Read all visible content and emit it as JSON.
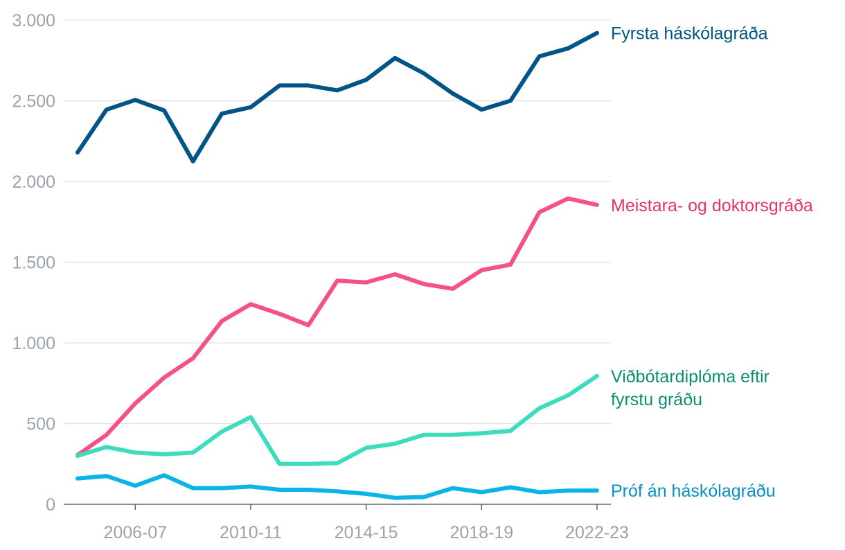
{
  "chart_data": {
    "type": "line",
    "x": [
      "2004-05",
      "2005-06",
      "2006-07",
      "2007-08",
      "2008-09",
      "2009-10",
      "2010-11",
      "2011-12",
      "2012-13",
      "2013-14",
      "2014-15",
      "2015-16",
      "2016-17",
      "2017-18",
      "2018-19",
      "2019-20",
      "2020-21",
      "2021-22",
      "2022-23"
    ],
    "x_tick_labels": [
      "2006-07",
      "2010-11",
      "2014-15",
      "2018-19",
      "2022-23"
    ],
    "y_tick_labels": [
      "0",
      "500",
      "1.000",
      "1.500",
      "2.000",
      "2.500",
      "3.000"
    ],
    "y_ticks": [
      0,
      500,
      1000,
      1500,
      2000,
      2500,
      3000
    ],
    "ylim": [
      0,
      3000
    ],
    "title": "",
    "xlabel": "",
    "ylabel": "",
    "grid": true,
    "legend": "direct-labels-right",
    "series": [
      {
        "name": "Fyrsta háskólagráða",
        "label_lines": [
          "Fyrsta háskólagráða"
        ],
        "color": "#005486",
        "label_color": "#005486",
        "values": [
          2180,
          2445,
          2505,
          2440,
          2125,
          2420,
          2460,
          2595,
          2595,
          2565,
          2630,
          2765,
          2670,
          2545,
          2445,
          2500,
          2775,
          2825,
          2920
        ]
      },
      {
        "name": "Meistara- og doktorsgráða",
        "label_lines": [
          "Meistara- og doktorsgráða"
        ],
        "color": "#f6508b",
        "label_color": "#e2336f",
        "values": [
          305,
          430,
          625,
          785,
          905,
          1135,
          1240,
          1180,
          1110,
          1385,
          1375,
          1425,
          1365,
          1335,
          1450,
          1485,
          1810,
          1895,
          1855
        ]
      },
      {
        "name": "Viðbótardiplóma eftir fyrstu gráðu",
        "label_lines": [
          "Viðbótardiplóma eftir",
          "fyrstu gráðu"
        ],
        "color": "#3ddcbd",
        "label_color": "#0b8f73",
        "values": [
          300,
          355,
          320,
          310,
          320,
          450,
          540,
          250,
          250,
          255,
          350,
          375,
          430,
          430,
          440,
          455,
          595,
          675,
          795
        ]
      },
      {
        "name": "Próf án háskólagráðu",
        "label_lines": [
          "Próf án háskólagráðu"
        ],
        "color": "#0ab4e6",
        "label_color": "#0a8fc2",
        "values": [
          160,
          175,
          115,
          180,
          100,
          100,
          110,
          90,
          90,
          80,
          65,
          40,
          45,
          100,
          75,
          105,
          75,
          85,
          85
        ]
      }
    ]
  }
}
